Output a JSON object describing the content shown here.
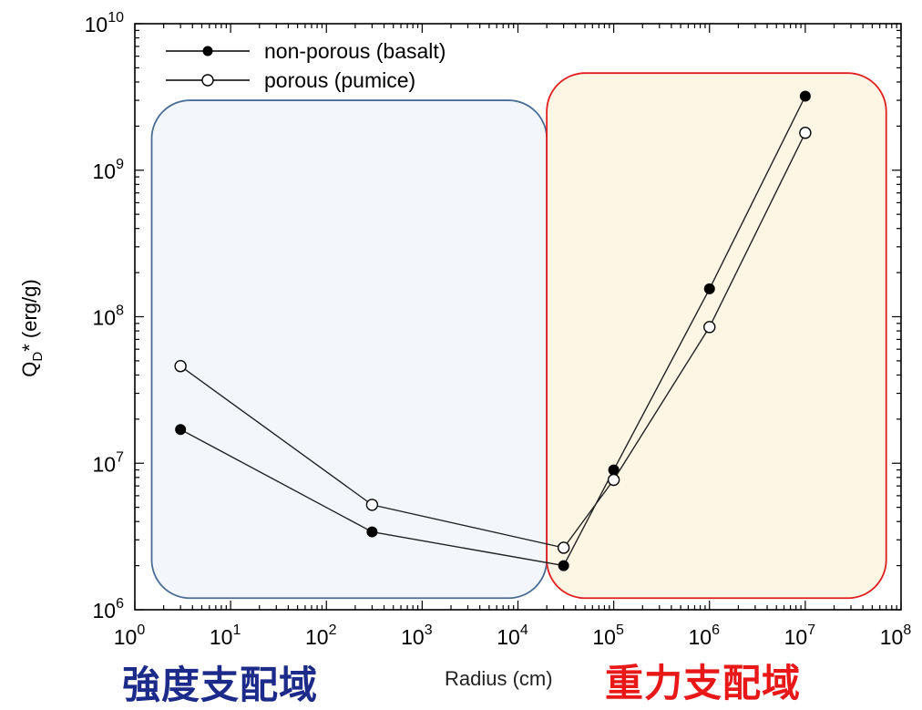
{
  "chart_data": {
    "type": "line",
    "xscale": "log",
    "yscale": "log",
    "xlim": [
      1,
      100000000
    ],
    "ylim": [
      1000000,
      10000000000
    ],
    "xlabel": "Radius (cm)",
    "ylabel": "Q",
    "ylabel_sub": "D",
    "ylabel_rest": "* (erg/g)",
    "x_ticks": [
      {
        "value": 1,
        "base": "10",
        "exp": "0"
      },
      {
        "value": 10,
        "base": "10",
        "exp": "1"
      },
      {
        "value": 100,
        "base": "10",
        "exp": "2"
      },
      {
        "value": 1000,
        "base": "10",
        "exp": "3"
      },
      {
        "value": 10000,
        "base": "10",
        "exp": "4"
      },
      {
        "value": 100000,
        "base": "10",
        "exp": "5"
      },
      {
        "value": 1000000,
        "base": "10",
        "exp": "6"
      },
      {
        "value": 10000000,
        "base": "10",
        "exp": "7"
      },
      {
        "value": 100000000,
        "base": "10",
        "exp": "8"
      }
    ],
    "y_ticks": [
      {
        "value": 1000000,
        "base": "10",
        "exp": "6"
      },
      {
        "value": 10000000,
        "base": "10",
        "exp": "7"
      },
      {
        "value": 100000000,
        "base": "10",
        "exp": "8"
      },
      {
        "value": 1000000000,
        "base": "10",
        "exp": "9"
      },
      {
        "value": 10000000000,
        "base": "10",
        "exp": "10"
      }
    ],
    "legend_position": "top-left",
    "series": [
      {
        "name": "non-porous (basalt)",
        "marker": "filled-circle",
        "x": [
          3,
          300,
          30000,
          100000,
          1000000,
          10000000
        ],
        "y": [
          17000000,
          3400000,
          2000000,
          9000000,
          155000000,
          3200000000
        ]
      },
      {
        "name": "porous (pumice)",
        "marker": "open-circle",
        "x": [
          3,
          300,
          30000,
          100000,
          1000000,
          10000000
        ],
        "y": [
          46000000,
          5200000,
          2650000,
          7700000,
          85000000,
          1800000000
        ]
      }
    ],
    "regions": [
      {
        "label": "強度支配域",
        "x_from": 1.5,
        "x_to": 20000,
        "y_from": 1200000,
        "y_to": 3000000000,
        "fill": "#f3f7fc",
        "stroke": "#4a6e96",
        "text_color": "#1c2a8a"
      },
      {
        "label": "重力支配域",
        "x_from": 20000,
        "x_to": 70000000,
        "y_from": 1200000,
        "y_to": 4600000000,
        "fill": "#fdf6e5",
        "stroke": "#e01e1e",
        "text_color": "#e81818"
      }
    ]
  }
}
